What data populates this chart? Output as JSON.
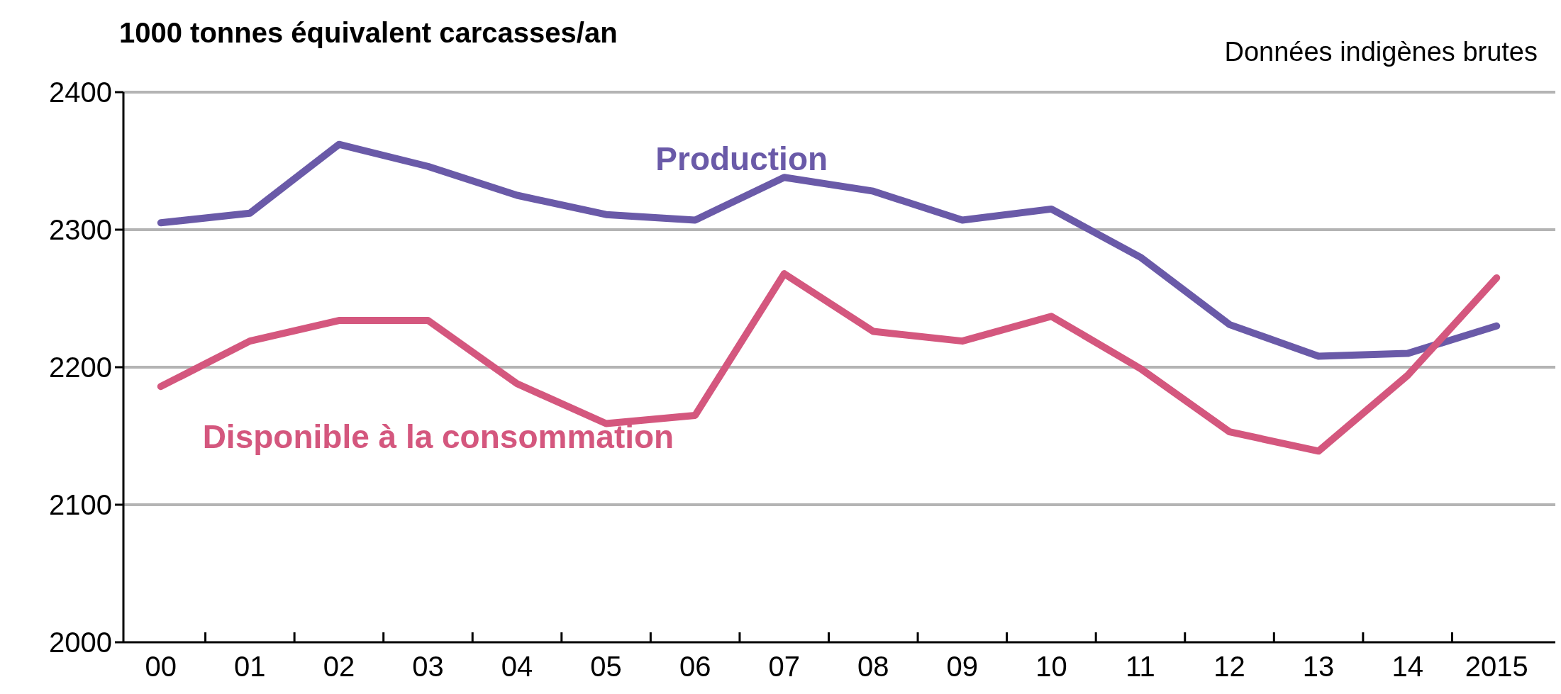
{
  "chart_data": {
    "type": "line",
    "ylabel": "1000 tonnes équivalent carcasses/an",
    "annotations": [
      "Données indigènes brutes"
    ],
    "categories": [
      "00",
      "01",
      "02",
      "03",
      "04",
      "05",
      "06",
      "07",
      "08",
      "09",
      "10",
      "11",
      "12",
      "13",
      "14",
      "2015"
    ],
    "series": [
      {
        "name": "Production",
        "color": "#6a5aa8",
        "values": [
          2305,
          2312,
          2362,
          2346,
          2325,
          2311,
          2307,
          2338,
          2328,
          2307,
          2315,
          2280,
          2231,
          2208,
          2210,
          2230
        ]
      },
      {
        "name": "Disponible à la consommation",
        "color": "#d4577e",
        "values": [
          2186,
          2219,
          2234,
          2234,
          2188,
          2159,
          2165,
          2268,
          2226,
          2219,
          2237,
          2199,
          2153,
          2139,
          2194,
          2265
        ]
      }
    ],
    "ylim": [
      2000,
      2400
    ],
    "yticks": [
      2000,
      2100,
      2200,
      2300,
      2400
    ],
    "grid": "y",
    "marker": "none",
    "line_style": "solid"
  }
}
